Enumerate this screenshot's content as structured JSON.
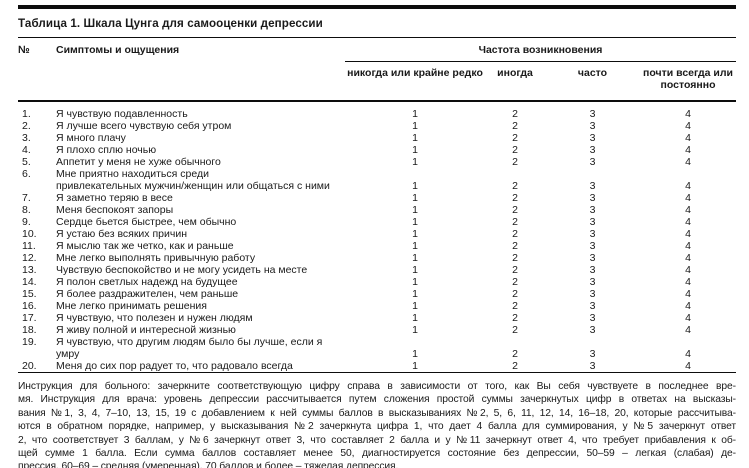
{
  "page": {
    "title": "Таблица 1. Шкала Цунга для самооценки депрессии"
  },
  "table": {
    "header": {
      "num": "№",
      "symptoms": "Симптомы и ощущения",
      "frequency_group": "Частота возникновения",
      "frequency_options": [
        "никогда или крайне редко",
        "иногда",
        "часто",
        "почти всегда или постоянно"
      ]
    },
    "rows": [
      {
        "num": "1.",
        "symptom": "Я чувствую подавленность",
        "values": [
          "1",
          "2",
          "3",
          "4"
        ]
      },
      {
        "num": "2.",
        "symptom": "Я лучше всего чувствую себя утром",
        "values": [
          "1",
          "2",
          "3",
          "4"
        ]
      },
      {
        "num": "3.",
        "symptom": "Я много плачу",
        "values": [
          "1",
          "2",
          "3",
          "4"
        ]
      },
      {
        "num": "4.",
        "symptom": "Я плохо сплю ночью",
        "values": [
          "1",
          "2",
          "3",
          "4"
        ]
      },
      {
        "num": "5.",
        "symptom": "Аппетит у меня не хуже обычного",
        "values": [
          "1",
          "2",
          "3",
          "4"
        ]
      },
      {
        "num": "6.",
        "symptom": "Мне приятно находиться среди\nпривлекательных мужчин/женщин или общаться с ними",
        "values": [
          "1",
          "2",
          "3",
          "4"
        ]
      },
      {
        "num": "7.",
        "symptom": "Я заметно теряю в весе",
        "values": [
          "1",
          "2",
          "3",
          "4"
        ]
      },
      {
        "num": "8.",
        "symptom": "Меня беспокоят запоры",
        "values": [
          "1",
          "2",
          "3",
          "4"
        ]
      },
      {
        "num": "9.",
        "symptom": "Сердце бьется быстрее, чем обычно",
        "values": [
          "1",
          "2",
          "3",
          "4"
        ]
      },
      {
        "num": "10.",
        "symptom": "Я устаю без всяких причин",
        "values": [
          "1",
          "2",
          "3",
          "4"
        ]
      },
      {
        "num": "11.",
        "symptom": "Я мыслю так же четко, как и раньше",
        "values": [
          "1",
          "2",
          "3",
          "4"
        ]
      },
      {
        "num": "12.",
        "symptom": "Мне легко выполнять привычную работу",
        "values": [
          "1",
          "2",
          "3",
          "4"
        ]
      },
      {
        "num": "13.",
        "symptom": "Чувствую беспокойство и не могу усидеть на месте",
        "values": [
          "1",
          "2",
          "3",
          "4"
        ]
      },
      {
        "num": "14.",
        "symptom": "Я полон светлых надежд на будущее",
        "values": [
          "1",
          "2",
          "3",
          "4"
        ]
      },
      {
        "num": "15.",
        "symptom": "Я более раздражителен, чем раньше",
        "values": [
          "1",
          "2",
          "3",
          "4"
        ]
      },
      {
        "num": "16.",
        "symptom": "Мне легко принимать решения",
        "values": [
          "1",
          "2",
          "3",
          "4"
        ]
      },
      {
        "num": "17.",
        "symptom": "Я чувствую, что полезен и нужен людям",
        "values": [
          "1",
          "2",
          "3",
          "4"
        ]
      },
      {
        "num": "18.",
        "symptom": "Я живу полной и интересной жизнью",
        "values": [
          "1",
          "2",
          "3",
          "4"
        ]
      },
      {
        "num": "19.",
        "symptom": "Я чувствую, что другим людям было бы лучше, если я умру",
        "values": [
          "1",
          "2",
          "3",
          "4"
        ]
      },
      {
        "num": "20.",
        "symptom": "Меня до сих пор радует то, что радовало всегда",
        "values": [
          "1",
          "2",
          "3",
          "4"
        ]
      }
    ]
  },
  "instructions": {
    "lines": [
      "Инструкция для больного: зачеркните соответствующую цифру справа в зависимости от того, как Вы себя чувствуете в последнее вре-",
      "мя. Инструкция для врача: уровень депрессии рассчитывается путем сложения простой суммы зачеркнутых цифр в ответах на высказы-",
      "вания №1, 3, 4, 7–10, 13, 15, 19 с добавлением к ней суммы баллов в высказываниях №2, 5, 6, 11, 12, 14, 16–18, 20, которые рассчитыва-",
      "ются в обратном порядке, например, у высказывания №2 зачеркнута цифра 1, что дает 4 балла для суммирования, у №5 зачеркнут ответ",
      "2, что соответствует 3 баллам, у №6 зачеркнут ответ 3, что составляет 2 балла и у №11 зачеркнут ответ 4, что требует прибавления к об-",
      "щей сумме 1 балла. Если сумма баллов составляет менее 50, диагностируется состояние без депрессии, 50–59 – легкая (слабая) де-",
      "прессия, 60–69 – средняя (умеренная), 70 баллов и более – тяжелая депрессия."
    ]
  }
}
